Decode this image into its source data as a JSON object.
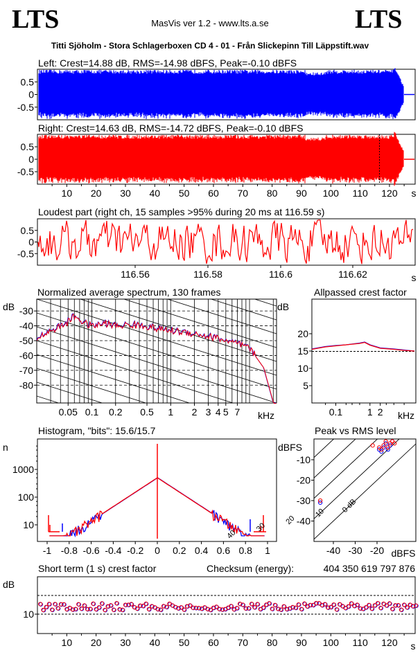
{
  "header": {
    "logo_left": "LTS",
    "logo_right": "LTS",
    "version": "MasVis ver 1.2 - www.lts.a.se",
    "filename": "Titti Sjöholm - Stora Schlagerboxen CD 4 - 01 - Från Slickepinn Till Läppstift.wav"
  },
  "colors": {
    "left": "#0000ff",
    "right": "#ff0000",
    "axis": "#000000"
  },
  "chart_data": [
    {
      "type": "line",
      "title": "Left: Crest=14.88 dB, RMS=-14.98 dBFS, Peak=-0.10 dBFS",
      "channel": "left",
      "yticks": [
        "0.5",
        "0",
        "-0.5"
      ],
      "ylim": [
        -1,
        1
      ],
      "xlim": [
        0,
        130
      ],
      "crest_db": 14.88,
      "rms_dbfs": -14.98,
      "peak_dbfs": -0.1
    },
    {
      "type": "line",
      "title": "Right: Crest=14.63 dB, RMS=-14.72 dBFS, Peak=-0.10 dBFS",
      "channel": "right",
      "yticks": [
        "0.5",
        "0",
        "-0.5"
      ],
      "ylim": [
        -1,
        1
      ],
      "xlim": [
        0,
        130
      ],
      "xticks": [
        "10",
        "20",
        "30",
        "40",
        "50",
        "60",
        "70",
        "80",
        "90",
        "100",
        "110",
        "120"
      ],
      "xunit": "s",
      "crest_db": 14.63,
      "rms_dbfs": -14.72,
      "peak_dbfs": -0.1,
      "marker_x": 116.59
    },
    {
      "type": "line",
      "title": "Loudest part (right ch, 15 samples >95% during 20 ms at 116.59 s)",
      "yticks": [
        "0.5",
        "0",
        "-0.5"
      ],
      "ylim": [
        -1,
        1
      ],
      "xticks": [
        "116.56",
        "116.58",
        "116.6",
        "116.62"
      ],
      "xunit": "s"
    },
    {
      "type": "line",
      "title": "Normalized average spectrum, 130 frames",
      "ylabel": "dB",
      "yticks": [
        "-30",
        "-40",
        "-50",
        "-60",
        "-70",
        "-80"
      ],
      "xticks": [
        "0.05",
        "0.1",
        "0.2",
        "0.5",
        "1",
        "2",
        "3",
        "4",
        "5",
        "7"
      ],
      "xunit": "kHz",
      "frames": 130,
      "x_khz": [
        0.02,
        0.03,
        0.04,
        0.05,
        0.06,
        0.08,
        0.1,
        0.15,
        0.2,
        0.3,
        0.5,
        0.7,
        1,
        1.5,
        2,
        3,
        4,
        5,
        7,
        10,
        15,
        20
      ],
      "y_db": [
        -48,
        -43,
        -40,
        -37,
        -33,
        -38,
        -40,
        -38,
        -40,
        -39,
        -40,
        -42,
        -43,
        -44,
        -45,
        -47,
        -48,
        -50,
        -52,
        -55,
        -68,
        -92
      ]
    },
    {
      "type": "line",
      "title": "Allpassed crest factor",
      "ylabel": "dB",
      "yticks": [
        "20",
        "15",
        "10",
        "5"
      ],
      "xticks": [
        "0.1",
        "1",
        "2"
      ],
      "xunit": "kHz",
      "reference_db": 14.9,
      "series": [
        {
          "color": "#0000ff",
          "x_khz": [
            0.02,
            0.05,
            0.1,
            0.2,
            0.5,
            0.7,
            1,
            2,
            5,
            10,
            20
          ],
          "y_db": [
            15.6,
            16.3,
            16.6,
            16.8,
            17.3,
            17.6,
            16.8,
            15.9,
            15.6,
            15.3,
            15.0
          ]
        },
        {
          "color": "#ff0000",
          "x_khz": [
            0.02,
            0.05,
            0.1,
            0.2,
            0.5,
            0.7,
            1,
            2,
            5,
            10,
            20
          ],
          "y_db": [
            15.5,
            16.2,
            16.5,
            16.8,
            17.2,
            17.5,
            16.7,
            15.8,
            15.5,
            15.2,
            15.0
          ]
        }
      ]
    },
    {
      "type": "line",
      "title": "Histogram, \"bits\": 15.6/15.7",
      "ylabel": "n",
      "yticks": [
        "1000",
        "100",
        "10"
      ],
      "xticks": [
        "-1",
        "-0.8",
        "-0.6",
        "-0.4",
        "-0.2",
        "0",
        "0.2",
        "0.4",
        "0.6",
        "0.8",
        "1"
      ],
      "bits_left": 15.6,
      "bits_right": 15.7
    },
    {
      "type": "scatter",
      "title": "Peak vs RMS level",
      "ylabel": "dBFS",
      "yticks": [
        "-10",
        "-20",
        "-30",
        "-40"
      ],
      "xticks": [
        "-40",
        "-30",
        "-20"
      ],
      "xunit": "dBFS",
      "diagonal_labels": [
        "40",
        "30",
        "20",
        "10",
        "0 dB"
      ],
      "series": [
        {
          "color": "#0000ff",
          "x": [
            -14,
            -15,
            -16,
            -17,
            -18,
            -13,
            -19,
            -46
          ],
          "y": [
            -3,
            -5,
            -2,
            -4,
            -6,
            -1,
            -5,
            -31
          ]
        },
        {
          "color": "#ff0000",
          "x": [
            -14,
            -15,
            -16,
            -17,
            -18,
            -13,
            -19,
            -12,
            -46,
            -22
          ],
          "y": [
            -2,
            -4,
            -1,
            -3,
            -5,
            -1,
            -4,
            -2,
            -30,
            -3
          ]
        }
      ]
    },
    {
      "type": "scatter",
      "title": "Short term (1 s) crest factor",
      "checksum_label": "Checksum (energy):",
      "checksum_value": "404 350 619 797 876",
      "ylabel": "dB",
      "yticks": [
        "10"
      ],
      "xticks": [
        "10",
        "20",
        "30",
        "40",
        "50",
        "60",
        "70",
        "80",
        "90",
        "100",
        "110",
        "120"
      ],
      "xunit": "s",
      "xlim": [
        0,
        130
      ]
    }
  ]
}
